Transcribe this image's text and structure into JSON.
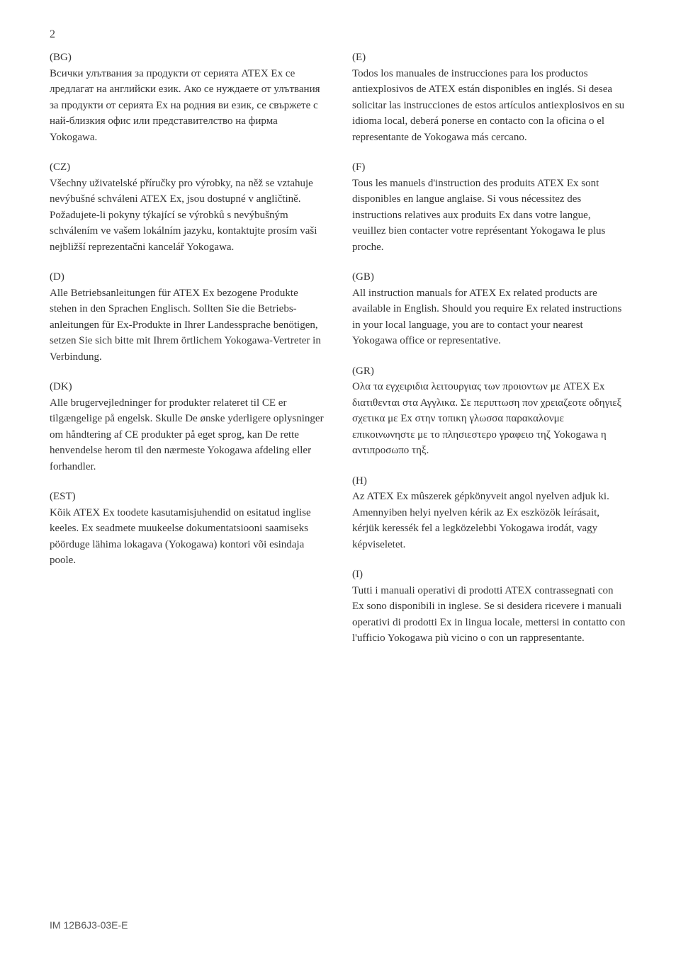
{
  "page_number": "2",
  "doc_id": "IM 12B6J3-03E-E",
  "left_column": [
    {
      "code": "(BG)",
      "text": "Всички улътвания за продукти от серията ATEX Ex се лредлагат на английски език. Ако се нуждаете от улътвания за продукти от серията Ex на родния ви език, се свържете с най-близкия офис или представителство на фирма Yokogawa."
    },
    {
      "code": "(CZ)",
      "text": "Všechny uživatelské příručky pro výrobky, na něž se vztahuje nevýbušné schváleni ATEX Ex, jsou dostupné v angličtině. Požadujete-li pokyny týkající se výrobků s nevýbušným schválením ve vašem lokálním jazyku, kontaktujte prosím vaši nejbližší reprezentačni kancelář Yokogawa."
    },
    {
      "code": "(D)",
      "text": "Alle Betriebsanleitungen für ATEX Ex bezogene Produkte stehen in den Sprachen Englisch. Sollten Sie die Betriebs- anleitungen für Ex-Produkte in Ihrer Landessprache benötigen, setzen Sie sich bitte mit Ihrem örtlichem Yokogawa-Vertreter in Verbindung."
    },
    {
      "code": "(DK)",
      "text": "Alle brugervejledninger for produkter relateret til CE er tilgængelige på engelsk. Skulle De ønske yderligere oplysninger om håndtering af CE produkter på  eget sprog, kan De rette henvendelse herom til den nærmeste Yokogawa afdeling eller forhandler."
    },
    {
      "code": "(EST)",
      "text": "Kõik ATEX Ex toodete kasutamisjuhendid on esitatud inglise keeles. Ex seadmete muukeelse dokumentatsiooni saamiseks pöörduge lähima lokagava (Yokogawa) kontori või esindaja poole."
    }
  ],
  "right_column": [
    {
      "code": "(E)",
      "text": "Todos los manuales de instrucciones para los productos antiexplosivos de ATEX están disponibles en inglés. Si desea solicitar las instrucciones de estos artículos antiexplosivos en su idioma local, deberá ponerse en  contacto con la oficina o el representante de Yokogawa más cercano."
    },
    {
      "code": "(F)",
      "text": "Tous les manuels d'instruction des produits ATEX Ex sont disponibles en langue anglaise. Si vous nécessitez des instructions relatives aux produits Ex dans votre langue, veuillez bien contacter votre représentant Yokogawa le plus proche."
    },
    {
      "code": "(GB)",
      "text": "All instruction manuals for ATEX Ex related products are available in English. Should you require Ex related instructions in your local language, you are to contact your nearest Yokogawa office or representative."
    },
    {
      "code": "(GR)",
      "text": "Ολα τα εγχειριδια λειτουργιας των προιοντων με ATEX Ex διατιθενται  στα Αγγλικα. Σε περιπτωση πον χρειαζεοτε οδηγιεξ σχετικα με Ex στην τοπικη γλωσσα παρακαλονμε επικοινωνηστε με το πλησιεστερο γραφειο τηζ Yokogawa η αντιπροσωπο τηξ."
    },
    {
      "code": "(H)",
      "text": "Az ATEX Ex mûszerek gépkönyveit angol nyelven adjuk ki. Amennyiben helyi nyelven kérik az Ex eszközök leírásait, kérjük keressék fel a legközelebbi Yokogawa irodát, vagy képviseletet."
    },
    {
      "code": "(I)",
      "text": "Tutti i manuali operativi di prodotti ATEX contrassegnati con Ex sono disponibili in inglese. Se si desidera ricevere i manuali operativi di prodotti Ex in lingua locale, mettersi in contatto con l'ufficio Yokogawa più vicino o con un rappresentante."
    }
  ]
}
